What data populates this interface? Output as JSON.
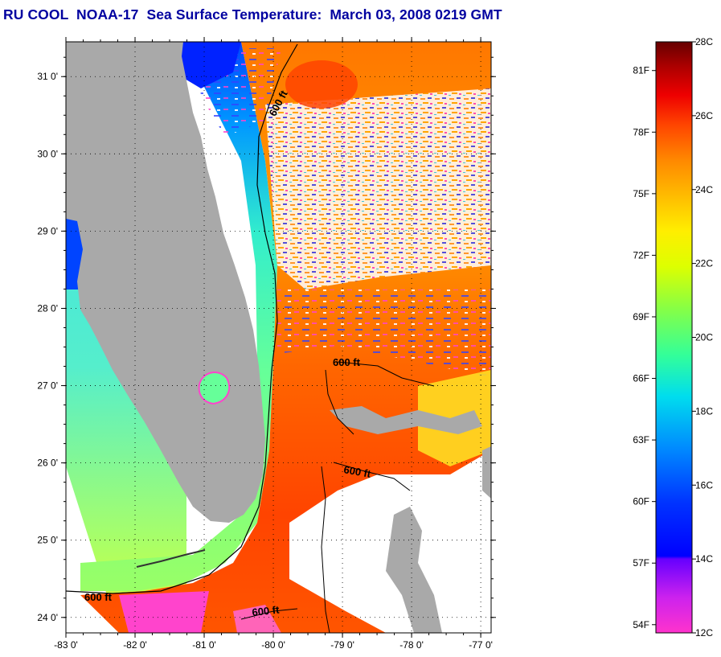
{
  "title": "RU COOL  NOAA-17  Sea Surface Temperature:  March 03, 2008 0219 GMT",
  "map": {
    "lat_labels": [
      "31 0'",
      "30 0'",
      "29 0'",
      "28 0'",
      "27 0'",
      "26 0'",
      "25 0'",
      "24 0'"
    ],
    "lat_values": [
      31,
      30,
      29,
      28,
      27,
      26,
      25,
      24
    ],
    "lon_labels": [
      "-83 0'",
      "-82 0'",
      "-81 0'",
      "-80 0'",
      "-79 0'",
      "-78 0'",
      "-77 0'"
    ],
    "lon_values": [
      -83,
      -82,
      -81,
      -80,
      -79,
      -78,
      -77
    ],
    "lat_range": [
      23.8,
      31.45
    ],
    "lon_range": [
      -83,
      -76.85
    ],
    "contour_labels": [
      "600 ft",
      "600 ft",
      "600 ft",
      "600 ft",
      "600 ft"
    ],
    "colors": {
      "land": "#a9a9a9",
      "no_data": "#ffffff",
      "contour": "#000000"
    }
  },
  "colorbar": {
    "fahrenheit_labels": [
      "81F",
      "78F",
      "75F",
      "72F",
      "69F",
      "66F",
      "63F",
      "60F",
      "57F",
      "54F"
    ],
    "celsius_labels": [
      "28C",
      "26C",
      "24C",
      "22C",
      "20C",
      "18C",
      "16C",
      "14C",
      "12C"
    ],
    "min_c": 12,
    "max_c": 28,
    "stops": [
      "#ff33cc",
      "#9900ff",
      "#0000ff",
      "#0066ff",
      "#00ccff",
      "#33ffcc",
      "#66ff66",
      "#ccff33",
      "#ffff00",
      "#ffcc00",
      "#ff9900",
      "#ff6600",
      "#ff2200",
      "#dd0000",
      "#990000",
      "#660000"
    ]
  }
}
